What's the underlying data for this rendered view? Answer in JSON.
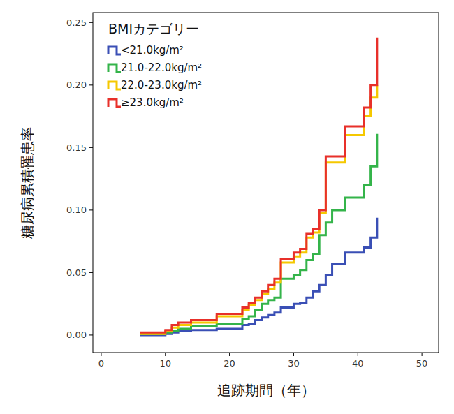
{
  "chart_data": {
    "type": "line",
    "line_style": "step",
    "x_label": "追跡期間（年）",
    "y_label": "糖尿病累積罹患率",
    "legend_title": "BMIカテゴリー",
    "legend": "top-left",
    "grid": false,
    "xlim": [
      -1.3,
      52.6
    ],
    "ylim": [
      -0.014,
      0.258
    ],
    "xticks": [
      0,
      10,
      20,
      30,
      40,
      50
    ],
    "yticks": [
      {
        "value": 0,
        "label": "0.00"
      },
      {
        "value": 0.05,
        "label": "0.05"
      },
      {
        "value": 0.1,
        "label": "0.10"
      },
      {
        "value": 0.15,
        "label": "0.15"
      },
      {
        "value": 0.2,
        "label": "0.20"
      },
      {
        "value": 0.25,
        "label": "0.25"
      }
    ],
    "x": [
      6,
      10,
      11,
      12,
      14,
      18,
      22,
      23,
      24,
      25,
      26,
      27,
      28,
      30,
      31,
      32,
      33,
      34,
      35,
      36,
      38,
      41,
      42,
      43
    ],
    "series": [
      {
        "name": "<21.0kg/m²",
        "color": "#3a4fb5",
        "values": [
          0,
          0.001,
          0.002,
          0.003,
          0.004,
          0.005,
          0.008,
          0.009,
          0.012,
          0.014,
          0.016,
          0.018,
          0.022,
          0.025,
          0.026,
          0.03,
          0.035,
          0.04,
          0.048,
          0.057,
          0.066,
          0.07,
          0.078,
          0.094
        ]
      },
      {
        "name": "21.0-22.0kg/m²",
        "color": "#34b44a",
        "values": [
          0.001,
          0.002,
          0.003,
          0.005,
          0.007,
          0.009,
          0.013,
          0.015,
          0.02,
          0.025,
          0.028,
          0.03,
          0.045,
          0.048,
          0.052,
          0.06,
          0.065,
          0.08,
          0.09,
          0.1,
          0.11,
          0.12,
          0.135,
          0.161
        ]
      },
      {
        "name": "22.0-23.0kg/m²",
        "color": "#f5c800",
        "values": [
          0.001,
          0.003,
          0.006,
          0.008,
          0.01,
          0.015,
          0.02,
          0.024,
          0.028,
          0.033,
          0.037,
          0.042,
          0.058,
          0.063,
          0.066,
          0.078,
          0.082,
          0.098,
          0.138,
          0.138,
          0.16,
          0.175,
          0.19,
          0.2
        ]
      },
      {
        "name": "≥23.0kg/m²",
        "color": "#e8302a",
        "values": [
          0.002,
          0.004,
          0.008,
          0.01,
          0.012,
          0.017,
          0.022,
          0.026,
          0.03,
          0.035,
          0.04,
          0.045,
          0.061,
          0.066,
          0.069,
          0.081,
          0.085,
          0.1,
          0.143,
          0.143,
          0.167,
          0.182,
          0.2,
          0.238
        ]
      }
    ]
  }
}
